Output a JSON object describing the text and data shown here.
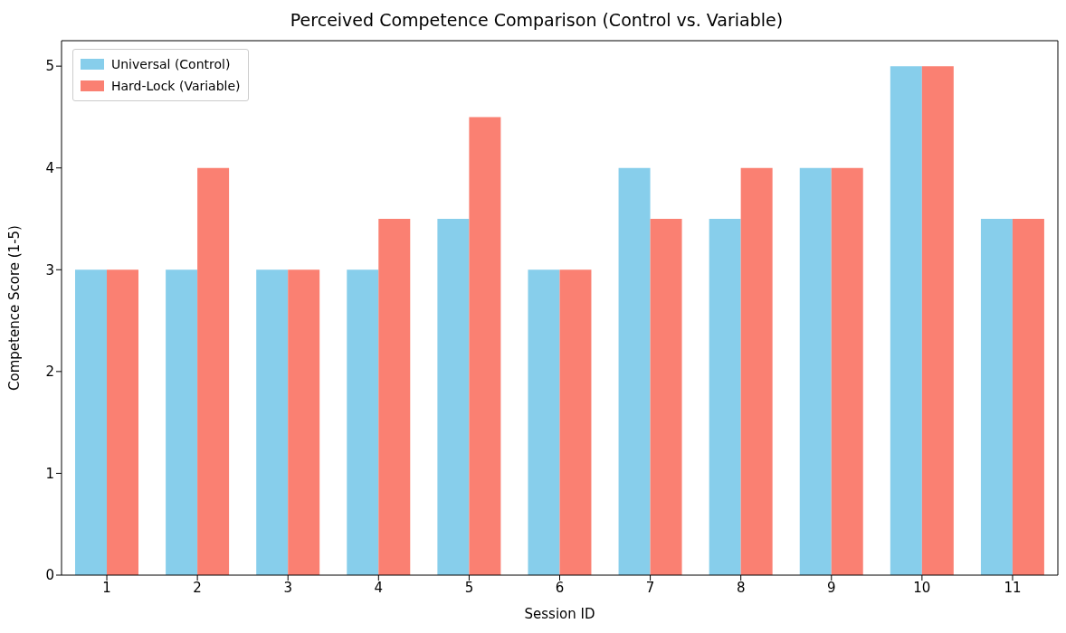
{
  "chart_data": {
    "type": "bar",
    "title": "Perceived Competence Comparison (Control vs. Variable)",
    "xlabel": "Session ID",
    "ylabel": "Competence Score (1-5)",
    "categories": [
      "1",
      "2",
      "3",
      "4",
      "5",
      "6",
      "7",
      "8",
      "9",
      "10",
      "11"
    ],
    "series": [
      {
        "name": "Universal (Control)",
        "color": "#87ceeb",
        "values": [
          3,
          3,
          3,
          3,
          3.5,
          3,
          4,
          3.5,
          4,
          5,
          3.5
        ]
      },
      {
        "name": "Hard-Lock (Variable)",
        "color": "#fa8072",
        "values": [
          3,
          4,
          3,
          3.5,
          4.5,
          3,
          3.5,
          4,
          4,
          5,
          3.5
        ]
      }
    ],
    "ylim": [
      0,
      5.25
    ],
    "yticks": [
      0,
      1,
      2,
      3,
      4,
      5
    ],
    "grid": false,
    "legend": "top left"
  }
}
